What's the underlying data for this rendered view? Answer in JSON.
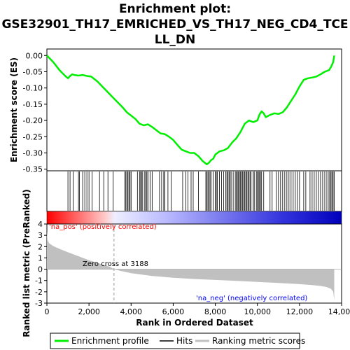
{
  "chart_data": [
    {
      "type": "line",
      "title_lines": [
        "Enrichment plot:",
        "GSE32901_TH17_EMRICHED_VS_TH17_NEG_CD4_TCE",
        "LL_DN"
      ],
      "ylabel": "Enrichment score (ES)",
      "ylim": [
        -0.355,
        0.02
      ],
      "yticks": [
        0.0,
        -0.05,
        -0.1,
        -0.15,
        -0.2,
        -0.25,
        -0.3,
        -0.35
      ],
      "ytick_labels": [
        "0.00",
        "-0.05",
        "-0.10",
        "-0.15",
        "-0.20",
        "-0.25",
        "-0.30",
        "-0.35"
      ],
      "xlim": [
        0,
        14000
      ],
      "series": [
        {
          "name": "Enrichment profile",
          "color": "#00ee00",
          "x": [
            0,
            300,
            600,
            900,
            1000,
            1100,
            1200,
            1300,
            1500,
            1700,
            1900,
            2100,
            2400,
            2700,
            3000,
            3300,
            3600,
            3800,
            4000,
            4200,
            4400,
            4600,
            4800,
            5000,
            5200,
            5400,
            5600,
            5800,
            6000,
            6200,
            6400,
            6600,
            6800,
            7000,
            7200,
            7400,
            7600,
            7700,
            7800,
            7900,
            8000,
            8200,
            8400,
            8600,
            8800,
            9000,
            9200,
            9400,
            9600,
            9800,
            10000,
            10100,
            10200,
            10300,
            10400,
            10600,
            10800,
            11000,
            11200,
            11400,
            11600,
            11800,
            12000,
            12200,
            12400,
            12600,
            12800,
            13000,
            13200,
            13400,
            13500,
            13600,
            13650
          ],
          "values": [
            0.0,
            -0.02,
            -0.045,
            -0.065,
            -0.07,
            -0.063,
            -0.058,
            -0.06,
            -0.062,
            -0.06,
            -0.063,
            -0.065,
            -0.08,
            -0.1,
            -0.12,
            -0.14,
            -0.16,
            -0.175,
            -0.185,
            -0.195,
            -0.21,
            -0.215,
            -0.212,
            -0.22,
            -0.23,
            -0.24,
            -0.242,
            -0.25,
            -0.26,
            -0.275,
            -0.29,
            -0.295,
            -0.3,
            -0.3,
            -0.31,
            -0.325,
            -0.335,
            -0.33,
            -0.322,
            -0.318,
            -0.305,
            -0.295,
            -0.292,
            -0.285,
            -0.268,
            -0.255,
            -0.235,
            -0.21,
            -0.2,
            -0.205,
            -0.2,
            -0.182,
            -0.172,
            -0.178,
            -0.19,
            -0.183,
            -0.178,
            -0.18,
            -0.175,
            -0.16,
            -0.14,
            -0.12,
            -0.095,
            -0.075,
            -0.07,
            -0.068,
            -0.065,
            -0.058,
            -0.05,
            -0.045,
            -0.035,
            -0.02,
            0.0
          ]
        }
      ]
    },
    {
      "type": "hits",
      "name": "Hits",
      "color": "#000000",
      "xlim": [
        0,
        14000
      ],
      "positions": [
        1000,
        1100,
        1250,
        1500,
        1550,
        1700,
        1800,
        1900,
        2000,
        2150,
        2500,
        2700,
        2900,
        3150,
        3700,
        3750,
        3800,
        3850,
        3900,
        3950,
        4000,
        4300,
        4400,
        4450,
        4500,
        4550,
        4650,
        4700,
        4750,
        4800,
        4900,
        5000,
        5350,
        5450,
        5550,
        5600,
        5750,
        5900,
        6450,
        6600,
        6700,
        6850,
        6950,
        7200,
        7550,
        7600,
        7650,
        7700,
        7750,
        7800,
        7900,
        8000,
        8050,
        8100,
        8200,
        8300,
        8400,
        8500,
        8550,
        8600,
        8650,
        8700,
        8750,
        8850,
        8950,
        9000,
        9050,
        9100,
        9150,
        9200,
        9250,
        9300,
        9350,
        9400,
        9450,
        9500,
        9550,
        9600,
        9650,
        9700,
        9800,
        9850,
        9950,
        10000,
        10050,
        10100,
        10150,
        10200,
        10300,
        10600,
        10700,
        10900,
        11000,
        11100,
        11200,
        11300,
        11400,
        11500,
        11600,
        11700,
        11800,
        11900,
        12000,
        12200,
        12300,
        12500,
        12600,
        12700,
        12800,
        12900,
        13000,
        13100,
        13200,
        13300,
        13400,
        13450,
        13500,
        13550,
        13600,
        13650
      ]
    },
    {
      "type": "area",
      "ylabel": "Ranked list metric (PreRanked)",
      "xlabel": "Rank in Ordered Dataset",
      "xlim": [
        0,
        14000
      ],
      "ylim": [
        -3,
        4
      ],
      "xticks": [
        0,
        2000,
        4000,
        6000,
        8000,
        10000,
        12000,
        14000
      ],
      "xtick_labels": [
        "0",
        "2,000",
        "4,000",
        "6,000",
        "8,000",
        "10,000",
        "12,000",
        "14,000"
      ],
      "yticks": [
        4,
        3,
        2,
        1,
        0,
        -1,
        -2,
        -3
      ],
      "ytick_labels": [
        "4",
        "3",
        "2",
        "1",
        "0",
        "-1",
        "-2",
        "-3"
      ],
      "series": [
        {
          "name": "Ranking metric scores",
          "color": "#c0c0c0",
          "x": [
            0,
            30,
            100,
            300,
            600,
            1000,
            1500,
            2000,
            2500,
            3000,
            3188,
            3500,
            4000,
            5000,
            6000,
            7000,
            8000,
            9000,
            10000,
            11000,
            12000,
            12600,
            13000,
            13300,
            13500,
            13600,
            13650
          ],
          "values": [
            3.4,
            2.6,
            2.3,
            2.05,
            1.8,
            1.5,
            1.15,
            0.8,
            0.5,
            0.2,
            0.0,
            -0.15,
            -0.35,
            -0.6,
            -0.75,
            -0.87,
            -0.95,
            -1.03,
            -1.12,
            -1.22,
            -1.32,
            -1.4,
            -1.48,
            -1.58,
            -1.75,
            -2.0,
            -2.7
          ]
        }
      ],
      "zero_cross": 3188,
      "annotations": [
        {
          "text": "'na_pos' (positively correlated)",
          "color": "#ff0000"
        },
        {
          "text": "Zero cross at 3188",
          "color": "#000000"
        },
        {
          "text": "'na_neg' (negatively correlated)",
          "color": "#0000ff"
        }
      ]
    }
  ],
  "legend": {
    "placement": "bottom",
    "items": [
      {
        "label": "Enrichment profile",
        "color": "#00ee00"
      },
      {
        "label": "Hits",
        "color": "#000000"
      },
      {
        "label": "Ranking metric scores",
        "color": "#c0c0c0"
      }
    ]
  }
}
